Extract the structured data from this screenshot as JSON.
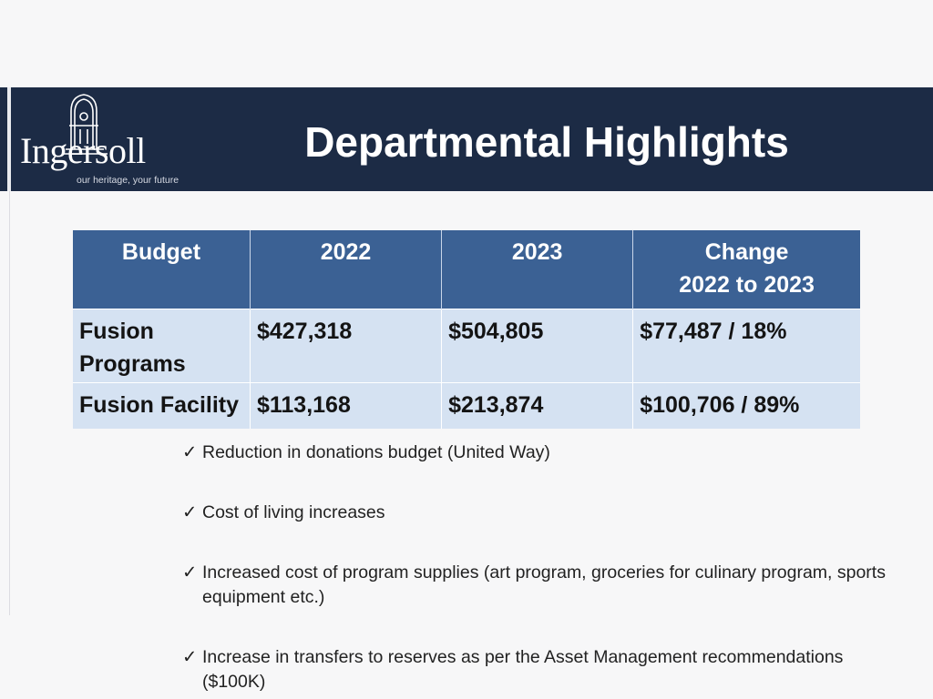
{
  "header": {
    "title": "Departmental Highlights",
    "logo": {
      "wordmark": "Ingersoll",
      "tagline": "our heritage, your future"
    }
  },
  "table": {
    "headers": [
      "Budget",
      "2022",
      "2023",
      "Change\n2022 to 2023"
    ],
    "rows": [
      [
        "Fusion Programs",
        "$427,318",
        "$504,805",
        "$77,487 / 18%"
      ],
      [
        "Fusion Facility",
        "$113,168",
        "$213,874",
        "$100,706 / 89%"
      ]
    ]
  },
  "bullets": [
    "Reduction in donations budget (United Way)",
    "Cost of living increases",
    "Increased cost of program supplies (art program, groceries for culinary program, sports equipment etc.)",
    "Increase in transfers to reserves as per the Asset Management recommendations ($100K)"
  ],
  "icons": {
    "bullet": "checkmark-icon",
    "logo": "clock-tower-icon"
  },
  "colors": {
    "header_band": "#1c2b45",
    "table_header": "#3b6194",
    "table_body": "#d5e2f2"
  }
}
